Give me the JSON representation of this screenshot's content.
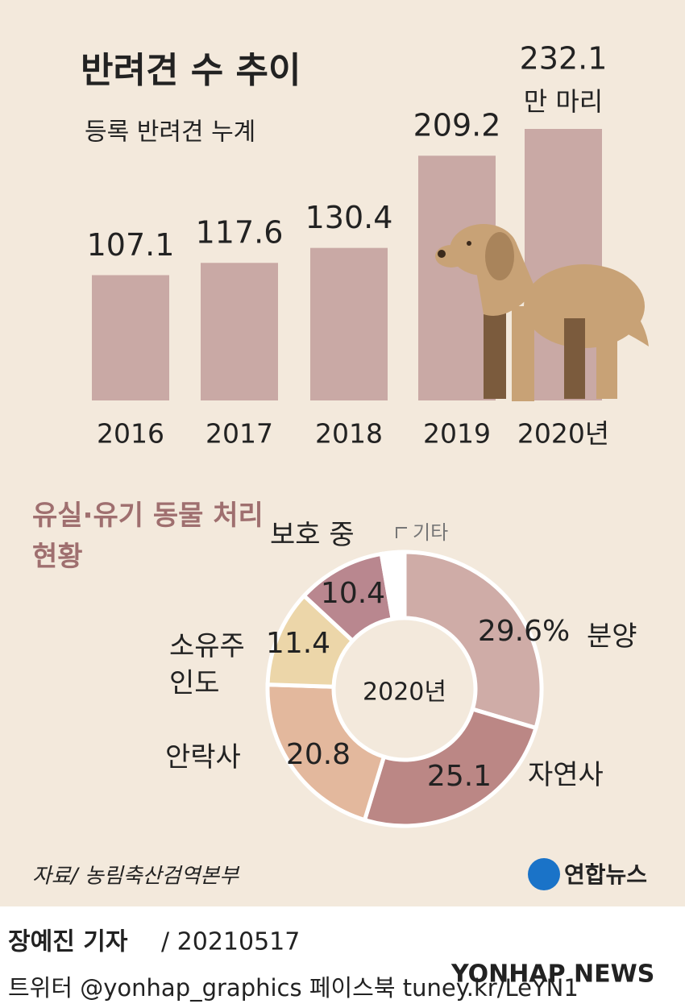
{
  "chart_data": [
    {
      "type": "bar",
      "title": "반려견 수 추이",
      "subtitle": "등록 반려견 누계",
      "categories": [
        "2016",
        "2017",
        "2018",
        "2019",
        "2020년"
      ],
      "values": [
        107.1,
        117.6,
        130.4,
        209.2,
        232.1
      ],
      "unit": "만 마리",
      "color": "#c9a9a5"
    },
    {
      "type": "donut",
      "title": "유실·유기 동물 처리 현황",
      "center_label": "2020년",
      "categories": [
        "분양",
        "자연사",
        "안락사",
        "소유주 인도",
        "보호 중",
        "기타"
      ],
      "values": [
        29.6,
        25.1,
        20.8,
        11.4,
        10.4,
        2.7
      ],
      "value_labels": [
        "29.6%",
        "25.1",
        "20.8",
        "11.4",
        "10.4",
        null
      ],
      "colors": [
        "#cfaca7",
        "#bb8785",
        "#e3b89d",
        "#ecd6a9",
        "#b9878f",
        "#ffffff"
      ]
    }
  ],
  "footer": {
    "source": "자료/ 농림축산검역본부",
    "logo": "연합뉴스",
    "reporter": "장예진 기자",
    "date": "/ 20210517",
    "social": "트위터 @yonhap_graphics  페이스북 tuney.kr/LeYN1",
    "watermark": "YONHAP NEWS"
  }
}
